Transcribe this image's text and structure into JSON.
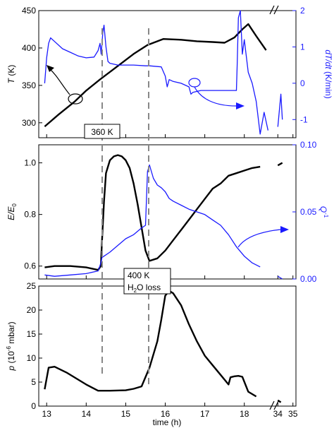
{
  "colors": {
    "black": "#000000",
    "blue": "#1a1aff",
    "dash_gray": "#888888"
  },
  "chart_data": [
    {
      "type": "line",
      "panel": "top",
      "ylabel_main": "T",
      "ylabel_unit": " (K)",
      "ylim": [
        280,
        450
      ],
      "yticks": [
        300,
        350,
        400,
        450
      ],
      "ylabel_right_main": "dT/dt",
      "ylabel_right_unit": " (K/min)",
      "ylim_right": [
        -1.5,
        2
      ],
      "yticks_right": [
        "-1",
        "0",
        "1",
        "2"
      ],
      "series": [
        {
          "axis": "left",
          "color": "#000000",
          "x": [
            12.95,
            13.3,
            13.7,
            14.0,
            14.35,
            14.8,
            15.2,
            15.55,
            15.95,
            16.4,
            16.8,
            17.2,
            17.5,
            17.75,
            17.95,
            18.1,
            18.3,
            18.55,
            34.0
          ],
          "y": [
            295,
            311,
            328,
            343,
            358,
            376,
            392,
            404,
            412,
            411,
            409,
            408,
            407,
            414,
            425,
            432,
            416,
            397,
            346
          ]
        },
        {
          "axis": "right",
          "color": "#1a1aff",
          "x": [
            12.95,
            13.0,
            13.05,
            13.1,
            13.2,
            13.4,
            13.6,
            13.8,
            14.0,
            14.2,
            14.3,
            14.35,
            14.38,
            14.42,
            14.45,
            14.5,
            14.55,
            14.6,
            14.8,
            15.0,
            15.2,
            15.5,
            15.6,
            15.9,
            16.0,
            16.05,
            16.1,
            16.2,
            16.4,
            16.6,
            16.65,
            16.7,
            16.9,
            17.2,
            17.6,
            17.8,
            17.82,
            17.85,
            17.9,
            17.95,
            18.0,
            18.1,
            18.2,
            18.3,
            18.4,
            18.5,
            18.6,
            34.0,
            34.2,
            34.3
          ],
          "y": [
            0.0,
            0.7,
            1.1,
            1.25,
            1.15,
            0.95,
            0.85,
            0.75,
            0.7,
            0.72,
            0.9,
            1.1,
            0.8,
            1.4,
            1.6,
            1.0,
            0.6,
            0.55,
            0.5,
            0.5,
            0.5,
            0.48,
            0.48,
            0.45,
            0.2,
            -0.1,
            0.1,
            0.05,
            0.0,
            -0.1,
            -0.3,
            -0.25,
            -0.2,
            -0.2,
            -0.2,
            -0.2,
            0.5,
            1.8,
            2.0,
            0.8,
            1.2,
            0.3,
            0.0,
            -0.5,
            -1.4,
            -0.8,
            -1.3,
            -1.2,
            -0.3,
            -1.0
          ]
        }
      ],
      "annotations": {
        "label_360": "360 K"
      }
    },
    {
      "type": "line",
      "panel": "middle",
      "ylabel_main": "E/E",
      "ylabel_sub": "0",
      "ylim": [
        0.55,
        1.07
      ],
      "yticks": [
        "0.6",
        "0.8",
        "1.0"
      ],
      "yticks_vals": [
        0.6,
        0.8,
        1.0
      ],
      "ylabel_right_main": "Q",
      "ylabel_right_sup": "-1",
      "ylim_right": [
        0,
        0.1
      ],
      "yticks_right": [
        "0.00",
        "0.05",
        "0.10"
      ],
      "yticks_right_vals": [
        0,
        0.05,
        0.1
      ],
      "series": [
        {
          "axis": "left",
          "color": "#000000",
          "x": [
            12.95,
            13.2,
            13.6,
            14.0,
            14.3,
            14.37,
            14.4,
            14.45,
            14.5,
            14.6,
            14.7,
            14.8,
            14.9,
            15.0,
            15.1,
            15.2,
            15.3,
            15.4,
            15.5,
            15.6,
            15.8,
            16.0,
            16.2,
            16.4,
            16.6,
            16.8,
            17.0,
            17.2,
            17.4,
            17.6,
            17.8,
            18.0,
            18.2,
            18.4,
            34.0,
            34.3
          ],
          "y": [
            0.595,
            0.6,
            0.6,
            0.595,
            0.585,
            0.6,
            0.7,
            0.85,
            0.96,
            1.01,
            1.025,
            1.03,
            1.025,
            1.01,
            0.98,
            0.92,
            0.84,
            0.75,
            0.66,
            0.62,
            0.63,
            0.66,
            0.7,
            0.74,
            0.78,
            0.82,
            0.86,
            0.9,
            0.92,
            0.95,
            0.96,
            0.97,
            0.98,
            0.985,
            0.99,
            1.0
          ]
        },
        {
          "axis": "right",
          "color": "#1a1aff",
          "x": [
            12.95,
            13.2,
            13.6,
            14.0,
            14.3,
            14.35,
            14.4,
            14.45,
            14.6,
            14.8,
            15.0,
            15.2,
            15.4,
            15.5,
            15.55,
            15.6,
            15.7,
            15.8,
            15.9,
            16.0,
            16.1,
            16.2,
            16.4,
            16.6,
            16.8,
            17.0,
            17.2,
            17.4,
            17.6,
            17.8,
            18.0,
            18.2,
            18.4,
            34.0,
            34.3
          ],
          "y": [
            0.003,
            0.002,
            0.003,
            0.004,
            0.006,
            0.01,
            0.016,
            0.017,
            0.02,
            0.025,
            0.03,
            0.033,
            0.038,
            0.04,
            0.08,
            0.085,
            0.075,
            0.07,
            0.068,
            0.065,
            0.06,
            0.058,
            0.055,
            0.052,
            0.05,
            0.048,
            0.044,
            0.04,
            0.033,
            0.024,
            0.017,
            0.012,
            0.009,
            0.002,
            0.0
          ]
        }
      ],
      "annotations": {
        "label_400_a": "400 K",
        "label_400_b_pre": "H",
        "label_400_b_sub": "2",
        "label_400_b_post": "O loss"
      }
    },
    {
      "type": "line",
      "panel": "bottom",
      "ylabel_main": "p",
      "ylabel_pre": " (10",
      "ylabel_sup": "-6",
      "ylabel_post": " mbar)",
      "ylim": [
        0,
        25
      ],
      "yticks": [
        "0",
        "5",
        "10",
        "15",
        "20",
        "25"
      ],
      "yticks_vals": [
        0,
        5,
        10,
        15,
        20,
        25
      ],
      "xlabel": "time (h)",
      "xticks": [
        "13",
        "14",
        "15",
        "16",
        "17",
        "18",
        "34",
        "35"
      ],
      "series": [
        {
          "axis": "left",
          "color": "#000000",
          "x": [
            12.95,
            13.05,
            13.2,
            13.5,
            14.0,
            14.3,
            14.6,
            15.0,
            15.2,
            15.4,
            15.6,
            15.8,
            15.9,
            16.0,
            16.1,
            16.2,
            16.4,
            16.6,
            16.8,
            17.0,
            17.2,
            17.4,
            17.6,
            17.65,
            17.75,
            17.85,
            17.95,
            18.1,
            18.3,
            34.0,
            34.2
          ],
          "y": [
            3.5,
            8.0,
            8.2,
            7.0,
            4.5,
            3.2,
            3.2,
            3.3,
            3.6,
            4.1,
            8.0,
            13.5,
            18.0,
            23.0,
            24.0,
            23.5,
            21.0,
            17.0,
            13.5,
            10.5,
            8.5,
            6.5,
            4.5,
            6.0,
            6.2,
            6.3,
            6.1,
            3.0,
            2.0,
            1.2,
            0.8
          ]
        }
      ]
    }
  ]
}
